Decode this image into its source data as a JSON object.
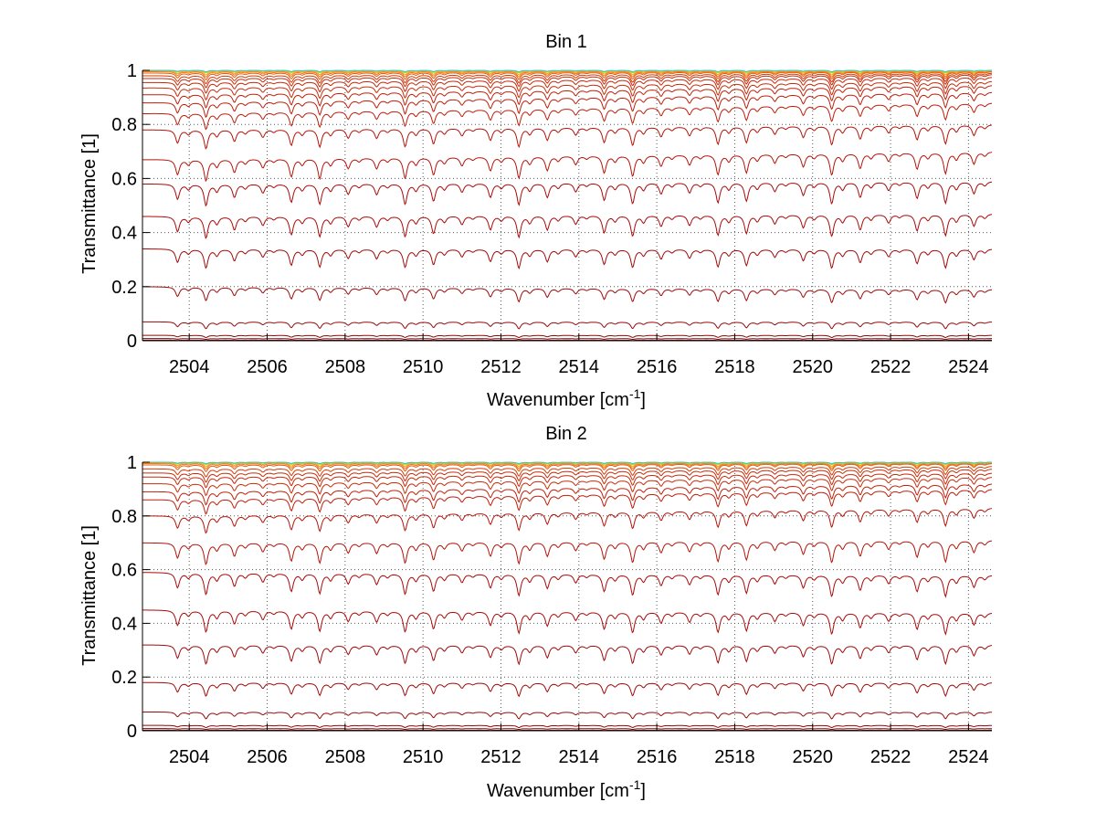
{
  "chart_data": [
    {
      "type": "line",
      "title": "Bin 1",
      "xlabel_main": "Wavenumber [cm",
      "xlabel_sup": "-1",
      "xlabel_end": "]",
      "ylabel": "Transmittance [1]",
      "xlim": [
        2502.8,
        2524.6
      ],
      "ylim": [
        0,
        1
      ],
      "xticks": [
        2504,
        2506,
        2508,
        2510,
        2512,
        2514,
        2516,
        2518,
        2520,
        2522,
        2524
      ],
      "yticks": [
        0,
        0.2,
        0.4,
        0.6,
        0.8,
        1
      ],
      "ytick_labels": [
        "0",
        "0.2",
        "0.4",
        "0.6",
        "0.8",
        "1"
      ],
      "grid": true,
      "line_spacing_cm-1": 0.73,
      "first_line_cm-1": 2503.7,
      "series": [
        {
          "base_start": 1.0,
          "base_end": 1.0,
          "depth": 0.005,
          "color": "#37c8c8"
        },
        {
          "base_start": 1.0,
          "base_end": 1.0,
          "depth": 0.008,
          "color": "#9bd23c"
        },
        {
          "base_start": 1.0,
          "base_end": 1.0,
          "depth": 0.01,
          "color": "#e6dc1e"
        },
        {
          "base_start": 0.998,
          "base_end": 0.999,
          "depth": 0.015,
          "color": "#f0a014"
        },
        {
          "base_start": 0.995,
          "base_end": 0.997,
          "depth": 0.02,
          "color": "#f07814"
        },
        {
          "base_start": 0.99,
          "base_end": 0.995,
          "depth": 0.025,
          "color": "#e65a0f"
        },
        {
          "base_start": 0.98,
          "base_end": 0.99,
          "depth": 0.03,
          "color": "#d23c0a"
        },
        {
          "base_start": 0.97,
          "base_end": 0.985,
          "depth": 0.035,
          "color": "#c82d0a"
        },
        {
          "base_start": 0.955,
          "base_end": 0.975,
          "depth": 0.04,
          "color": "#c8280a"
        },
        {
          "base_start": 0.935,
          "base_end": 0.96,
          "depth": 0.045,
          "color": "#c82d0a"
        },
        {
          "base_start": 0.91,
          "base_end": 0.945,
          "depth": 0.05,
          "color": "#c0200a"
        },
        {
          "base_start": 0.88,
          "base_end": 0.92,
          "depth": 0.055,
          "color": "#be1e0a"
        },
        {
          "base_start": 0.84,
          "base_end": 0.88,
          "depth": 0.06,
          "color": "#be1e0a"
        },
        {
          "base_start": 0.78,
          "base_end": 0.8,
          "depth": 0.07,
          "color": "#b4140a"
        },
        {
          "base_start": 0.67,
          "base_end": 0.7,
          "depth": 0.08,
          "color": "#b4140a"
        },
        {
          "base_start": 0.58,
          "base_end": 0.59,
          "depth": 0.08,
          "color": "#aa0a0a"
        },
        {
          "base_start": 0.46,
          "base_end": 0.47,
          "depth": 0.08,
          "color": "#aa0a0a"
        },
        {
          "base_start": 0.34,
          "base_end": 0.34,
          "depth": 0.07,
          "color": "#a00a0a"
        },
        {
          "base_start": 0.2,
          "base_end": 0.19,
          "depth": 0.05,
          "color": "#a00a0a"
        },
        {
          "base_start": 0.07,
          "base_end": 0.07,
          "depth": 0.025,
          "color": "#960a0a"
        },
        {
          "base_start": 0.02,
          "base_end": 0.02,
          "depth": 0.008,
          "color": "#8c0a0a"
        },
        {
          "base_start": 0.008,
          "base_end": 0.008,
          "depth": 0.003,
          "color": "#780a0a"
        },
        {
          "base_start": 0.002,
          "base_end": 0.002,
          "depth": 0.001,
          "color": "#640a0a"
        }
      ]
    },
    {
      "type": "line",
      "title": "Bin 2",
      "xlabel_main": "Wavenumber [cm",
      "xlabel_sup": "-1",
      "xlabel_end": "]",
      "ylabel": "Transmittance [1]",
      "xlim": [
        2502.8,
        2524.6
      ],
      "ylim": [
        0,
        1
      ],
      "xticks": [
        2504,
        2506,
        2508,
        2510,
        2512,
        2514,
        2516,
        2518,
        2520,
        2522,
        2524
      ],
      "yticks": [
        0,
        0.2,
        0.4,
        0.6,
        0.8,
        1
      ],
      "ytick_labels": [
        "0",
        "0.2",
        "0.4",
        "0.6",
        "0.8",
        "1"
      ],
      "grid": true,
      "line_spacing_cm-1": 0.73,
      "first_line_cm-1": 2503.7,
      "series": [
        {
          "base_start": 1.0,
          "base_end": 1.0,
          "depth": 0.005,
          "color": "#37c8c8"
        },
        {
          "base_start": 1.0,
          "base_end": 1.0,
          "depth": 0.008,
          "color": "#9bd23c"
        },
        {
          "base_start": 1.0,
          "base_end": 1.0,
          "depth": 0.01,
          "color": "#e6dc1e"
        },
        {
          "base_start": 0.998,
          "base_end": 0.999,
          "depth": 0.015,
          "color": "#f0a014"
        },
        {
          "base_start": 0.995,
          "base_end": 0.997,
          "depth": 0.02,
          "color": "#f07814"
        },
        {
          "base_start": 0.99,
          "base_end": 0.995,
          "depth": 0.025,
          "color": "#e65a0f"
        },
        {
          "base_start": 0.975,
          "base_end": 0.985,
          "depth": 0.03,
          "color": "#d23c0a"
        },
        {
          "base_start": 0.96,
          "base_end": 0.975,
          "depth": 0.035,
          "color": "#c82d0a"
        },
        {
          "base_start": 0.945,
          "base_end": 0.96,
          "depth": 0.04,
          "color": "#c8280a"
        },
        {
          "base_start": 0.92,
          "base_end": 0.945,
          "depth": 0.045,
          "color": "#c82d0a"
        },
        {
          "base_start": 0.89,
          "base_end": 0.92,
          "depth": 0.05,
          "color": "#c0200a"
        },
        {
          "base_start": 0.86,
          "base_end": 0.9,
          "depth": 0.055,
          "color": "#be1e0a"
        },
        {
          "base_start": 0.8,
          "base_end": 0.83,
          "depth": 0.065,
          "color": "#b4140a"
        },
        {
          "base_start": 0.7,
          "base_end": 0.71,
          "depth": 0.08,
          "color": "#b4140a"
        },
        {
          "base_start": 0.59,
          "base_end": 0.58,
          "depth": 0.08,
          "color": "#aa0a0a"
        },
        {
          "base_start": 0.45,
          "base_end": 0.44,
          "depth": 0.08,
          "color": "#aa0a0a"
        },
        {
          "base_start": 0.32,
          "base_end": 0.32,
          "depth": 0.07,
          "color": "#a00a0a"
        },
        {
          "base_start": 0.18,
          "base_end": 0.18,
          "depth": 0.05,
          "color": "#a00a0a"
        },
        {
          "base_start": 0.07,
          "base_end": 0.07,
          "depth": 0.025,
          "color": "#960a0a"
        },
        {
          "base_start": 0.02,
          "base_end": 0.02,
          "depth": 0.008,
          "color": "#8c0a0a"
        },
        {
          "base_start": 0.008,
          "base_end": 0.008,
          "depth": 0.003,
          "color": "#780a0a"
        },
        {
          "base_start": 0.002,
          "base_end": 0.002,
          "depth": 0.001,
          "color": "#640a0a"
        }
      ]
    }
  ]
}
